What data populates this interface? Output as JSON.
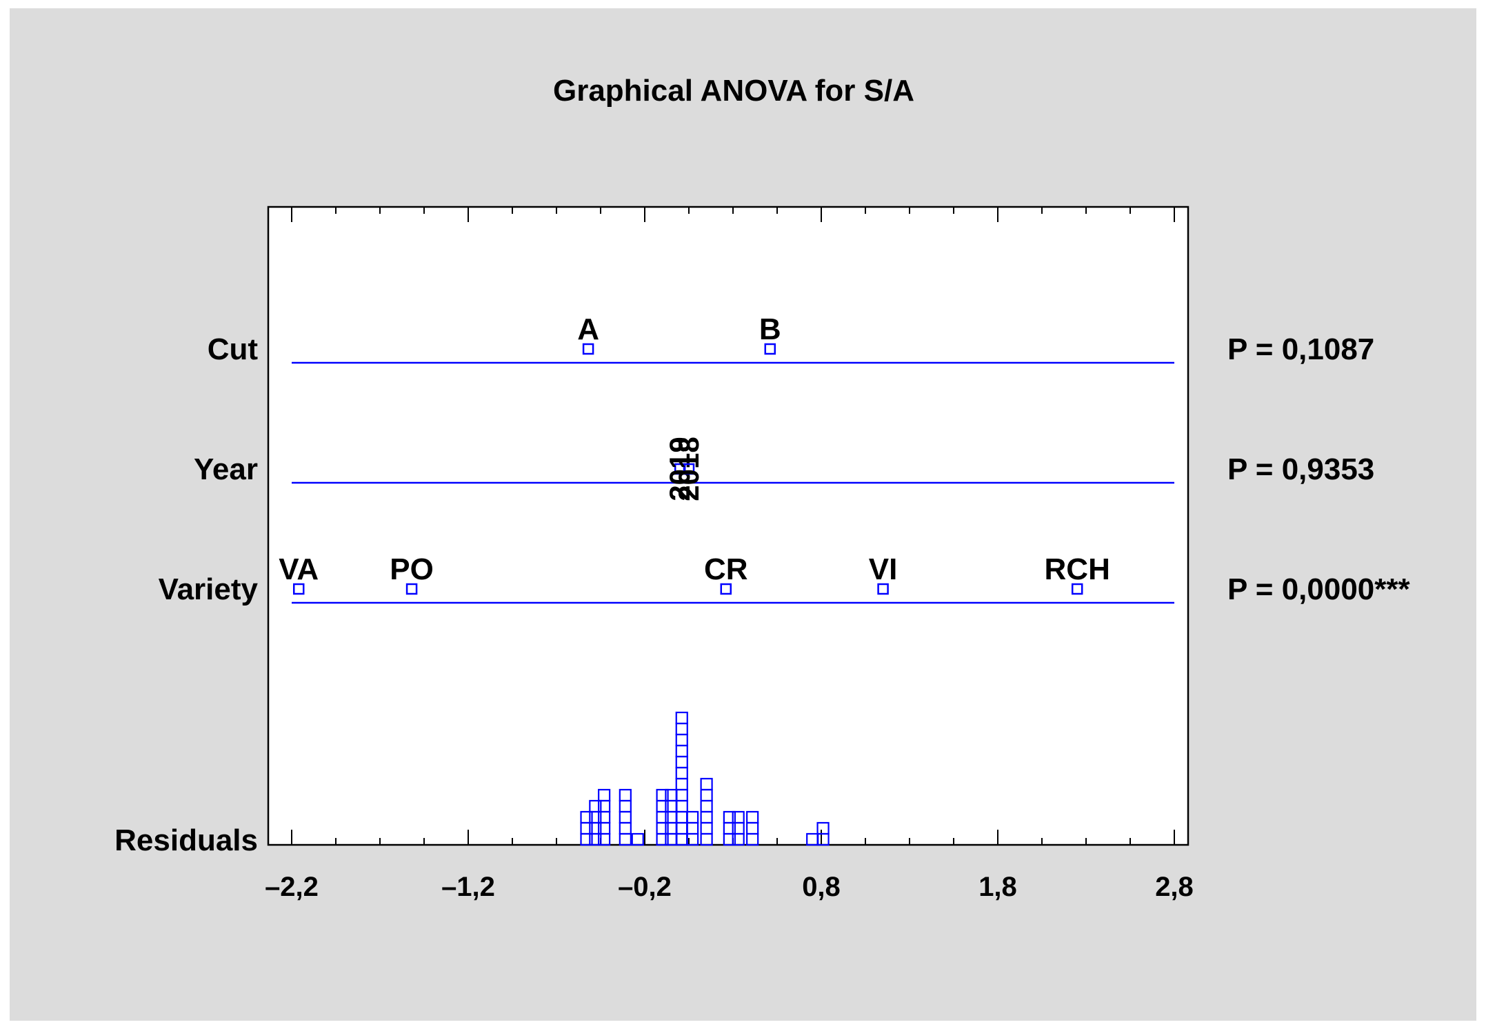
{
  "chart_data": {
    "type": "scatter",
    "title": "Graphical ANOVA for S/A",
    "x_ticks": [
      "–2,2",
      "–1,2",
      "–0,2",
      "0,8",
      "1,8",
      "2,8"
    ],
    "xlim": [
      -2.2,
      2.8
    ],
    "grid": false,
    "factors": [
      {
        "name": "Cut",
        "p_value": "P = 0,1087",
        "levels": [
          {
            "label": "A",
            "x": -0.52
          },
          {
            "label": "B",
            "x": 0.51
          }
        ]
      },
      {
        "name": "Year",
        "p_value": "P = 0,9353",
        "vertical_labels": true,
        "levels": [
          {
            "label": "2019",
            "x": 0.0
          },
          {
            "label": "2018",
            "x": 0.05
          }
        ]
      },
      {
        "name": "Variety",
        "p_value": "P = 0,0000***",
        "levels": [
          {
            "label": "VA",
            "x": -2.16
          },
          {
            "label": "PO",
            "x": -1.52
          },
          {
            "label": "CR",
            "x": 0.26
          },
          {
            "label": "VI",
            "x": 1.15
          },
          {
            "label": "RCH",
            "x": 2.25
          }
        ]
      }
    ],
    "residuals": {
      "name": "Residuals",
      "dot_columns": [
        {
          "x": -0.53,
          "count": 3
        },
        {
          "x": -0.48,
          "count": 4
        },
        {
          "x": -0.43,
          "count": 5
        },
        {
          "x": -0.31,
          "count": 5
        },
        {
          "x": -0.24,
          "count": 1
        },
        {
          "x": -0.1,
          "count": 5
        },
        {
          "x": -0.05,
          "count": 5
        },
        {
          "x": 0.01,
          "count": 12
        },
        {
          "x": 0.07,
          "count": 3
        },
        {
          "x": 0.15,
          "count": 6
        },
        {
          "x": 0.28,
          "count": 3
        },
        {
          "x": 0.33,
          "count": 3
        },
        {
          "x": 0.41,
          "count": 3
        },
        {
          "x": 0.75,
          "count": 1
        },
        {
          "x": 0.81,
          "count": 2
        }
      ]
    },
    "colors": {
      "marker": "#0000ff",
      "line": "#0000ff",
      "background": "#dcdcdc",
      "plot_bg": "#ffffff"
    }
  }
}
